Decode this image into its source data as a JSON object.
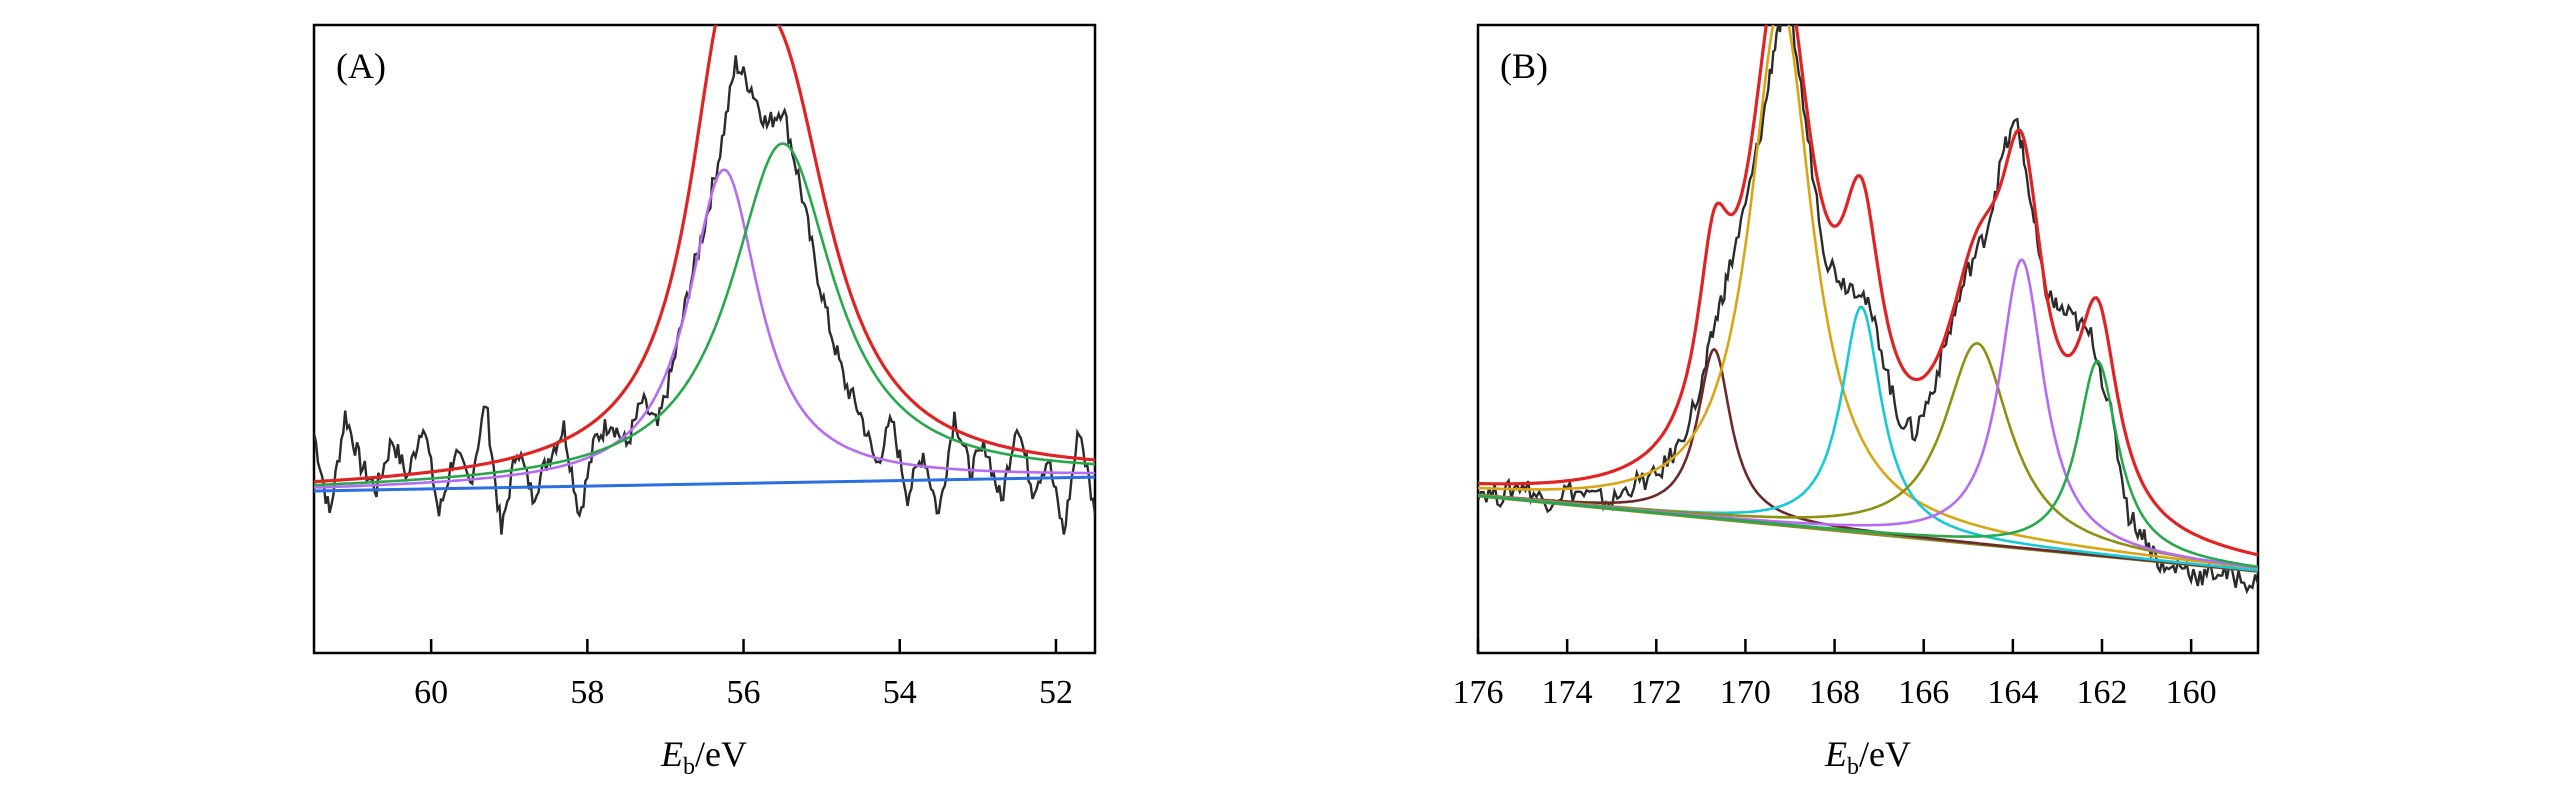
{
  "figure": {
    "panels": [
      {
        "id": "A",
        "label": "(A)",
        "chart_data": {
          "type": "line",
          "title": "",
          "xlabel_main": "E",
          "xlabel_sub": "b",
          "xlabel_unit": "/eV",
          "ylabel": "",
          "x_reversed": true,
          "xlim": [
            61.5,
            51.5
          ],
          "ylim": [
            0,
            1
          ],
          "xticks": [
            60,
            58,
            56,
            54,
            52
          ],
          "xtick_labels": [
            "60",
            "58",
            "56",
            "54",
            "52"
          ],
          "grid": false,
          "legend": "none",
          "baseline": {
            "color": "#2b6fe0",
            "y_at_start": 0.258,
            "y_at_end": 0.28
          },
          "peaks": [
            {
              "center": 56.25,
              "height": 0.5,
              "width": 0.55,
              "color": "#b56cf0"
            },
            {
              "center": 55.5,
              "height": 0.54,
              "width": 0.8,
              "color": "#27a84a"
            }
          ],
          "envelope_color": "#e02424",
          "raw": {
            "color": "#2b2b2b",
            "x": [
              61.5,
              61.3,
              61.1,
              60.9,
              60.7,
              60.5,
              60.3,
              60.1,
              59.9,
              59.7,
              59.5,
              59.3,
              59.1,
              58.9,
              58.7,
              58.5,
              58.3,
              58.1,
              57.9,
              57.7,
              57.5,
              57.3,
              57.1,
              56.9,
              56.7,
              56.5,
              56.3,
              56.1,
              55.9,
              55.7,
              55.5,
              55.3,
              55.1,
              54.9,
              54.7,
              54.5,
              54.3,
              54.1,
              53.9,
              53.7,
              53.5,
              53.3,
              53.1,
              52.9,
              52.7,
              52.5,
              52.3,
              52.1,
              51.9,
              51.7,
              51.5
            ],
            "y": [
              0.35,
              0.22,
              0.38,
              0.3,
              0.26,
              0.34,
              0.28,
              0.37,
              0.22,
              0.32,
              0.27,
              0.4,
              0.19,
              0.33,
              0.25,
              0.31,
              0.36,
              0.22,
              0.34,
              0.37,
              0.33,
              0.4,
              0.36,
              0.46,
              0.58,
              0.68,
              0.8,
              0.94,
              0.9,
              0.84,
              0.87,
              0.76,
              0.63,
              0.52,
              0.43,
              0.38,
              0.3,
              0.37,
              0.25,
              0.32,
              0.22,
              0.38,
              0.29,
              0.33,
              0.24,
              0.37,
              0.26,
              0.31,
              0.19,
              0.36,
              0.22
            ]
          }
        }
      },
      {
        "id": "B",
        "label": "(B)",
        "chart_data": {
          "type": "line",
          "title": "",
          "xlabel_main": "E",
          "xlabel_sub": "b",
          "xlabel_unit": "/eV",
          "ylabel": "",
          "x_reversed": true,
          "xlim": [
            176,
            158.5
          ],
          "ylim": [
            0,
            1
          ],
          "xticks": [
            176,
            174,
            172,
            170,
            168,
            166,
            164,
            162,
            160
          ],
          "xtick_labels": [
            "176",
            "174",
            "172",
            "170",
            "168",
            "166",
            "164",
            "162",
            "160"
          ],
          "grid": false,
          "legend": "none",
          "baseline": {
            "color": "#8b8b2a",
            "y_at_start": 0.25,
            "y_at_end": 0.13
          },
          "peaks": [
            {
              "center": 170.7,
              "height": 0.27,
              "width": 0.45,
              "color": "#6b2a2a"
            },
            {
              "center": 169.2,
              "height": 0.83,
              "width": 0.85,
              "color": "#d9a514"
            },
            {
              "center": 167.4,
              "height": 0.36,
              "width": 0.55,
              "color": "#16c9d9"
            },
            {
              "center": 164.8,
              "height": 0.32,
              "width": 0.9,
              "color": "#8f8f10"
            },
            {
              "center": 163.8,
              "height": 0.46,
              "width": 0.6,
              "color": "#b56cf0"
            },
            {
              "center": 162.1,
              "height": 0.31,
              "width": 0.55,
              "color": "#27a84a"
            }
          ],
          "envelope_color": "#e02424",
          "raw": {
            "color": "#2b2b2b",
            "x": [
              176,
              175.5,
              175,
              174.5,
              174,
              173.5,
              173,
              172.5,
              172,
              171.5,
              171,
              170.7,
              170.4,
              170,
              169.6,
              169.3,
              169,
              168.6,
              168.2,
              167.8,
              167.4,
              167,
              166.6,
              166.2,
              165.8,
              165.4,
              165,
              164.6,
              164.2,
              163.9,
              163.6,
              163.3,
              163,
              162.6,
              162.2,
              161.8,
              161.4,
              161,
              160.6,
              160.2,
              159.8,
              159.4,
              159,
              158.5
            ],
            "y": [
              0.26,
              0.25,
              0.27,
              0.24,
              0.26,
              0.25,
              0.24,
              0.27,
              0.28,
              0.33,
              0.42,
              0.52,
              0.6,
              0.71,
              0.85,
              0.99,
              1.03,
              0.82,
              0.63,
              0.59,
              0.58,
              0.5,
              0.38,
              0.35,
              0.42,
              0.52,
              0.61,
              0.67,
              0.8,
              0.85,
              0.72,
              0.58,
              0.55,
              0.53,
              0.5,
              0.38,
              0.22,
              0.18,
              0.13,
              0.14,
              0.12,
              0.13,
              0.12,
              0.11
            ]
          }
        }
      }
    ]
  }
}
